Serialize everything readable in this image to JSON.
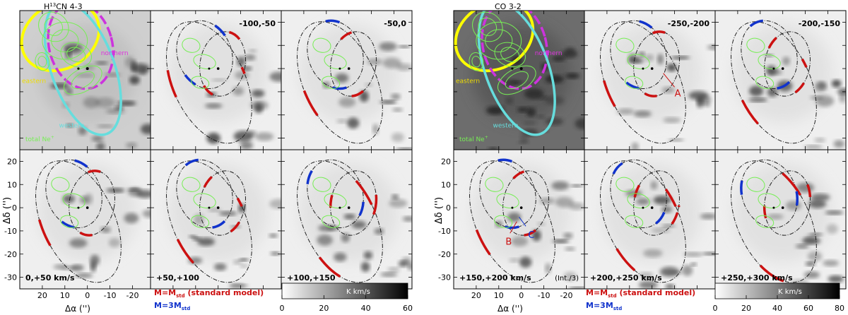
{
  "chart_data": [
    {
      "type": "heatmap",
      "title": "H13CN 4-3",
      "title_main": "H",
      "title_sup": "13",
      "title_rest": "CN 4-3",
      "xlabel": "Δα ('')",
      "ylabel": "Δδ ('')",
      "xlim": [
        30,
        -28
      ],
      "ylim": [
        -35,
        25
      ],
      "x_ticks": [
        20,
        10,
        0,
        -10,
        -20
      ],
      "y_ticks": [
        20,
        10,
        0,
        -10,
        -20,
        -30
      ],
      "colorbar": {
        "label": "K km/s",
        "range": [
          0,
          60
        ],
        "ticks": [
          0,
          20,
          40,
          60
        ]
      },
      "legend": [
        {
          "label_main": "M=M",
          "label_sub": "std",
          "label_rest": "  (standard model)",
          "color": "#cc1111"
        },
        {
          "label_main": "M=3M",
          "label_sub": "std",
          "label_rest": "",
          "color": "#1133cc"
        }
      ],
      "annotations": {
        "eastern": "eastern",
        "northern": "northern",
        "western": "western",
        "total": "total Ne",
        "total_sup": "+"
      },
      "panels": [
        {
          "range": "",
          "row": 0,
          "col": 0,
          "type": "overview"
        },
        {
          "range": "-100,-50",
          "row": 0,
          "col": 1
        },
        {
          "range": "-50,0",
          "row": 0,
          "col": 2
        },
        {
          "range": "0,+50 km/s",
          "row": 1,
          "col": 0
        },
        {
          "range": "+50,+100",
          "row": 1,
          "col": 1
        },
        {
          "range": "+100,+150",
          "row": 1,
          "col": 2
        }
      ]
    },
    {
      "type": "heatmap",
      "title": "CO 3-2",
      "xlabel": "Δα ('')",
      "ylabel": "Δδ ('')",
      "xlim": [
        30,
        -28
      ],
      "ylim": [
        -35,
        25
      ],
      "x_ticks": [
        20,
        10,
        0,
        -10,
        -20
      ],
      "y_ticks": [
        20,
        10,
        0,
        -10,
        -20,
        -30
      ],
      "colorbar": {
        "label": "K km/s",
        "range": [
          0,
          80
        ],
        "ticks": [
          0,
          20,
          40,
          60,
          80
        ]
      },
      "legend": [
        {
          "label_main": "M=M",
          "label_sub": "std",
          "label_rest": "  (standard model)",
          "color": "#cc1111"
        },
        {
          "label_main": "M=3M",
          "label_sub": "std",
          "label_rest": "",
          "color": "#1133cc"
        }
      ],
      "annotations": {
        "eastern": "eastern",
        "northern": "northern",
        "western": "western",
        "total": "total Ne",
        "total_sup": "+",
        "A": "A",
        "B": "B",
        "C": "C",
        "int_note": "(Int./3)"
      },
      "panels": [
        {
          "range": "",
          "row": 0,
          "col": 0,
          "type": "overview"
        },
        {
          "range": "-250,-200",
          "row": 0,
          "col": 1
        },
        {
          "range": "-200,-150",
          "row": 0,
          "col": 2
        },
        {
          "range": "+150,+200 km/s",
          "row": 1,
          "col": 0
        },
        {
          "range": "+200,+250 km/s",
          "row": 1,
          "col": 1
        },
        {
          "range": "+250,+300 km/s",
          "row": 1,
          "col": 2
        }
      ]
    }
  ]
}
